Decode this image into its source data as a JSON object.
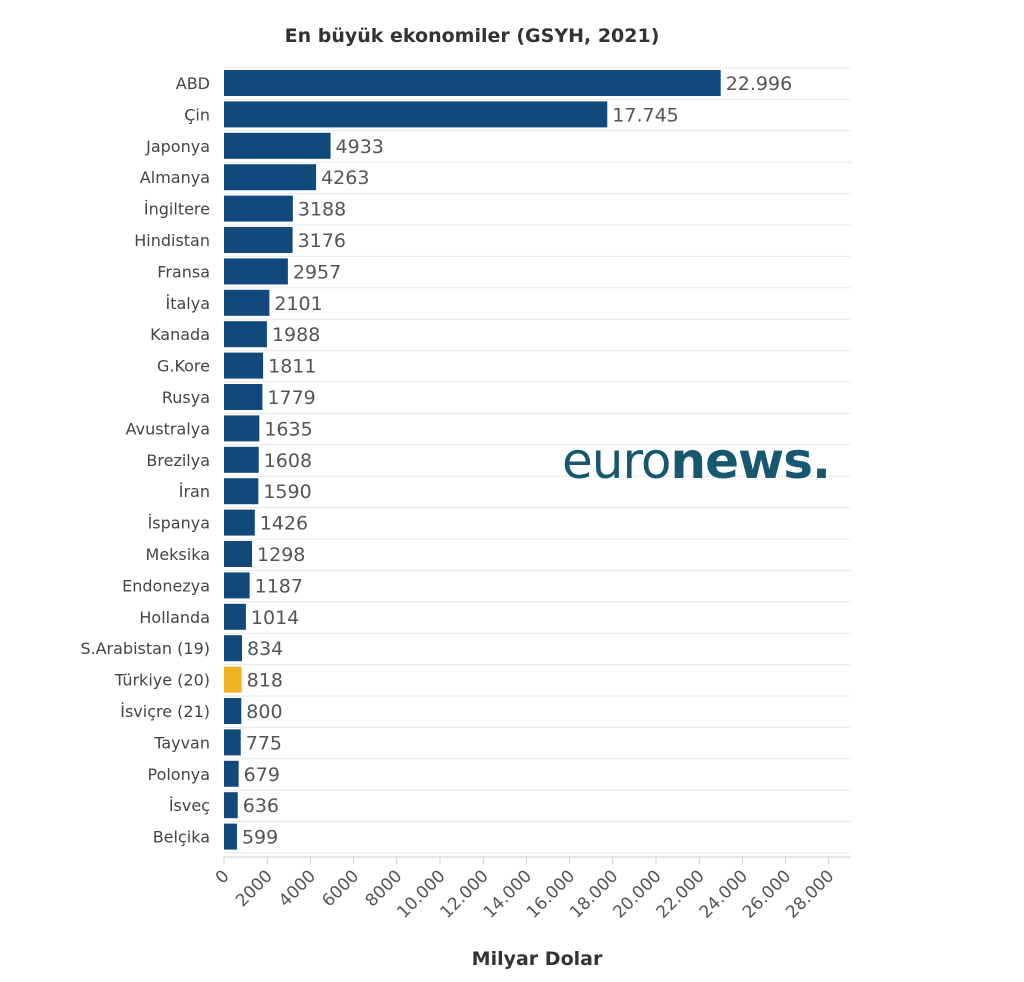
{
  "chart_data": {
    "type": "bar",
    "orientation": "horizontal",
    "title": "En büyük ekonomiler (GSYH, 2021)",
    "xlabel": "Milyar Dolar",
    "ylabel": "",
    "xlim": [
      0,
      28000
    ],
    "x_ticks": [
      0,
      2000,
      4000,
      6000,
      8000,
      10000,
      12000,
      14000,
      16000,
      18000,
      20000,
      22000,
      24000,
      26000,
      28000
    ],
    "x_tick_labels": [
      "0",
      "2000",
      "4000",
      "6000",
      "8000",
      "10.000",
      "12.000",
      "14.000",
      "16.000",
      "18.000",
      "20.000",
      "22.000",
      "24.000",
      "26.000",
      "28.000"
    ],
    "grid": true,
    "bar_color": "#11497a",
    "highlight_color": "#f0b323",
    "highlight_category": "Türkiye (20)",
    "categories": [
      "ABD",
      "Çin",
      "Japonya",
      "Almanya",
      "İngiltere",
      "Hindistan",
      "Fransa",
      "İtalya",
      "Kanada",
      "G.Kore",
      "Rusya",
      "Avustralya",
      "Brezilya",
      "İran",
      "İspanya",
      "Meksika",
      "Endonezya",
      "Hollanda",
      "S.Arabistan (19)",
      "Türkiye (20)",
      "İsviçre (21)",
      "Tayvan",
      "Polonya",
      "İsveç",
      "Belçika"
    ],
    "values": [
      22996,
      17745,
      4933,
      4263,
      3188,
      3176,
      2957,
      2101,
      1988,
      1811,
      1779,
      1635,
      1608,
      1590,
      1426,
      1298,
      1187,
      1014,
      834,
      818,
      800,
      775,
      679,
      636,
      599
    ],
    "value_labels": [
      "22.996",
      "17.745",
      "4933",
      "4263",
      "3188",
      "3176",
      "2957",
      "2101",
      "1988",
      "1811",
      "1779",
      "1635",
      "1608",
      "1590",
      "1426",
      "1298",
      "1187",
      "1014",
      "834",
      "818",
      "800",
      "775",
      "679",
      "636",
      "599"
    ]
  },
  "watermark": {
    "part1": "euro",
    "part2": "news.",
    "color": "#17586e"
  }
}
